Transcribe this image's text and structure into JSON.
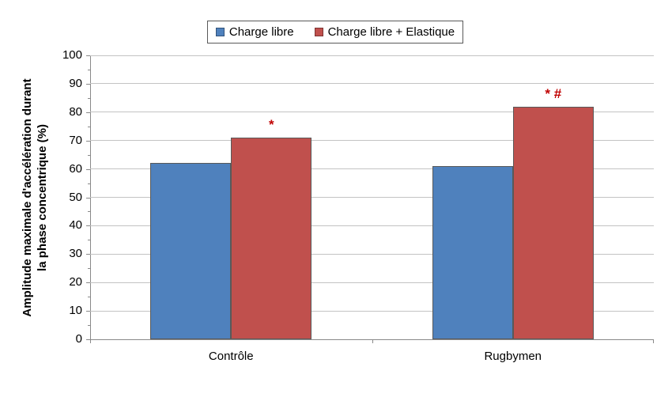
{
  "chart_data": {
    "type": "bar",
    "title": "",
    "categories": [
      "Contrôle",
      "Rugbymen"
    ],
    "series": [
      {
        "name": "Charge libre",
        "color": "#4F81BD",
        "values": [
          62,
          61
        ]
      },
      {
        "name": "Charge libre + Elastique",
        "color": "#C0504D",
        "values": [
          71,
          82
        ]
      }
    ],
    "annotations": [
      {
        "category_index": 0,
        "series_index": 1,
        "text": "*"
      },
      {
        "category_index": 1,
        "series_index": 1,
        "text": "* #"
      }
    ],
    "annotation_color": "#C00000",
    "ylabel": "Amplitude maximale d'accélération durant la phase concentrique (%)",
    "ylabel_line1": "Amplitude maximale d'accélération durant",
    "ylabel_line2": "la phase concentrique (%)",
    "xlabel": "",
    "ylim": [
      0,
      100
    ],
    "yticks": [
      0,
      10,
      20,
      30,
      40,
      50,
      60,
      70,
      80,
      90,
      100
    ],
    "minor_tick_step": 5,
    "grid": true,
    "legend_position": "top"
  },
  "colors": {
    "background": "#FFFFFF",
    "bar_border": "#595959",
    "gridline": "#C3C3C3",
    "axis": "#898989",
    "legend_border": "#595959"
  }
}
